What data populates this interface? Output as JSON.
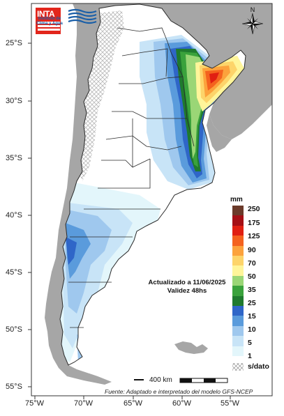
{
  "latitude_labels": [
    "25°S",
    "30°S",
    "35°S",
    "40°S",
    "45°S",
    "50°S",
    "55°S"
  ],
  "longitude_labels": [
    "75°W",
    "70°W",
    "65°W",
    "60°W",
    "55°W"
  ],
  "logos": {
    "inta_text": "INTA",
    "institute_line1": "Instituto de",
    "institute_line2": "Clima y Agua"
  },
  "compass_label": "N",
  "update": {
    "line1": "Actualizado a 11/06/2025",
    "line2": "Validez 48hs"
  },
  "legend": {
    "title": "mm",
    "labels": [
      "250",
      "175",
      "125",
      "90",
      "70",
      "50",
      "35",
      "25",
      "15",
      "10",
      "5",
      "1",
      "s/dato"
    ],
    "colors": [
      "#6b3a2a",
      "#a50f15",
      "#e01f12",
      "#f4621e",
      "#fca23c",
      "#fdd46a",
      "#fff59a",
      "#9ad676",
      "#3aa23c",
      "#1f7a2e",
      "#2f66c8",
      "#5a9bdc",
      "#9fc8ee",
      "#c8e4f7",
      "#e3f6fb"
    ]
  },
  "scale": {
    "label": "400 km"
  },
  "source": "Fuente: Adaptado e interpretado del modelo GFS-NCEP",
  "colors": {
    "ocean": "#ffffff",
    "neighbor_land": "#a6a6a6",
    "argentina": "#ffffff",
    "borders": "#2a2a2a"
  }
}
